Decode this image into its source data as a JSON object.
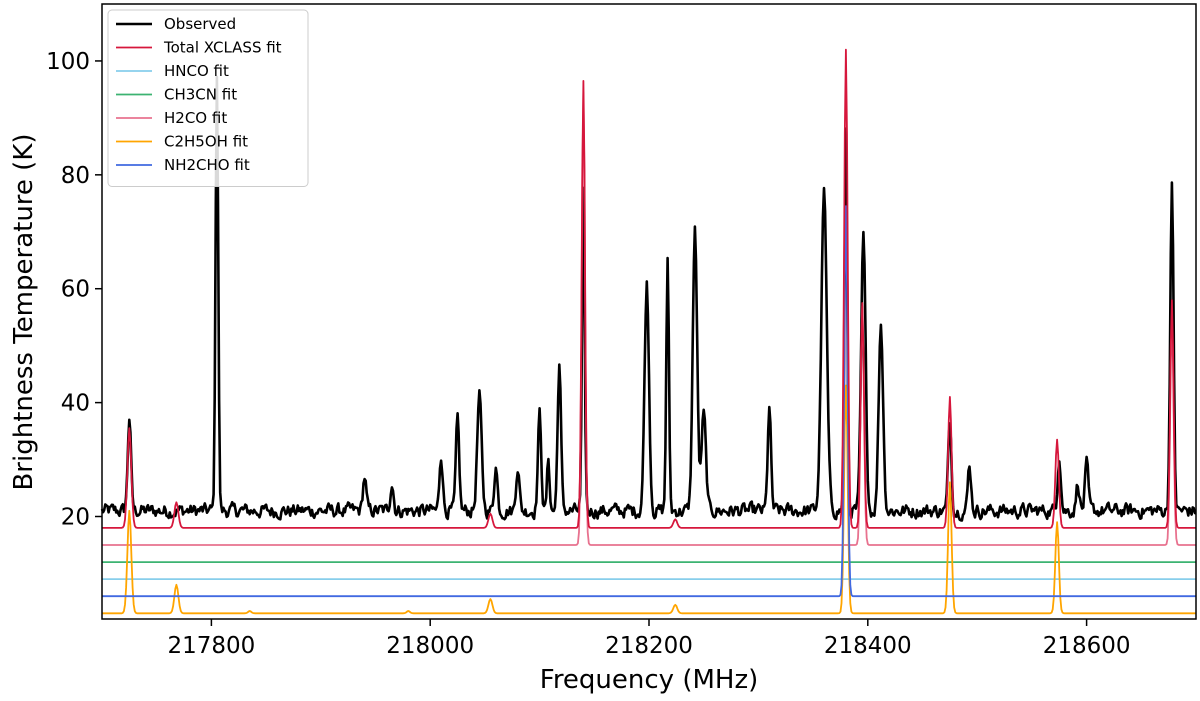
{
  "chart_data": {
    "type": "line",
    "xlabel": "Frequency (MHz)",
    "ylabel": "Brightness Temperature (K)",
    "xlim": [
      217700,
      218700
    ],
    "ylim": [
      2,
      110
    ],
    "xticks": [
      217800,
      218000,
      218200,
      218400,
      218600
    ],
    "yticks": [
      20,
      40,
      60,
      80,
      100
    ],
    "grid": false,
    "legend_position": "top-left",
    "line_width_note": "Observed spectrum drawn thicker than model fits",
    "series": [
      {
        "name": "Observed",
        "color": "#000000",
        "baseline": 21,
        "noise": 1.3,
        "lines": [
          [
            217725,
            16.5,
            1.5
          ],
          [
            217805,
            77,
            1.2
          ],
          [
            217940,
            6,
            1.5
          ],
          [
            217965,
            5,
            1.5
          ],
          [
            218010,
            10,
            1.5
          ],
          [
            218025,
            16,
            1.5
          ],
          [
            218045,
            20,
            2.0
          ],
          [
            218060,
            8,
            1.5
          ],
          [
            218080,
            8,
            1.5
          ],
          [
            218100,
            17,
            1.5
          ],
          [
            218108,
            9,
            1.2
          ],
          [
            218118,
            26,
            1.5
          ],
          [
            218140,
            55,
            1.2
          ],
          [
            218198,
            40,
            2.0
          ],
          [
            218217,
            44,
            1.2
          ],
          [
            218242,
            50,
            2.0
          ],
          [
            218250,
            17,
            2.0
          ],
          [
            218310,
            18,
            1.5
          ],
          [
            218360,
            56,
            2.5
          ],
          [
            218380,
            66,
            1.2
          ],
          [
            218396,
            48,
            2.0
          ],
          [
            218412,
            33,
            2.0
          ],
          [
            218475,
            16,
            1.5
          ],
          [
            218493,
            8,
            1.5
          ],
          [
            218575,
            10,
            1.5
          ],
          [
            218592,
            5,
            1.5
          ],
          [
            218600,
            8,
            1.5
          ],
          [
            218678,
            57,
            1.5
          ]
        ],
        "min_cut": 18
      },
      {
        "name": "Total XCLASS fit",
        "color": "#d6173c",
        "baseline": 18,
        "lines": [
          [
            217725,
            17.5,
            1.8
          ],
          [
            217768,
            4.5,
            1.8
          ],
          [
            218055,
            2.5,
            1.8
          ],
          [
            218140,
            78.5,
            1.5
          ],
          [
            218224,
            1.5,
            1.8
          ],
          [
            218380,
            84,
            1.6
          ],
          [
            218395,
            39.5,
            1.5
          ],
          [
            218475,
            23,
            1.6
          ],
          [
            218573,
            15.5,
            1.6
          ],
          [
            218678,
            40,
            1.5
          ]
        ]
      },
      {
        "name": "HNCO fit",
        "color": "#87ceeb",
        "baseline": 9,
        "lines": []
      },
      {
        "name": "CH3CN fit",
        "color": "#3cb371",
        "baseline": 12,
        "lines": []
      },
      {
        "name": "H2CO fit",
        "color": "#e8728f",
        "baseline": 15,
        "lines": [
          [
            218140,
            79.5,
            1.5
          ],
          [
            218395,
            42,
            1.5
          ],
          [
            218678,
            40,
            1.5
          ]
        ]
      },
      {
        "name": "C2H5OH fit",
        "color": "#ffa500",
        "baseline": 3,
        "lines": [
          [
            217725,
            18,
            1.8
          ],
          [
            217768,
            5,
            1.8
          ],
          [
            217835,
            0.4,
            1.5
          ],
          [
            217980,
            0.4,
            1.5
          ],
          [
            218055,
            2.5,
            1.8
          ],
          [
            218224,
            1.5,
            1.8
          ],
          [
            218380,
            40,
            1.6
          ],
          [
            218475,
            23,
            1.6
          ],
          [
            218573,
            16,
            1.6
          ]
        ]
      },
      {
        "name": "NH2CHO fit",
        "color": "#4169e1",
        "baseline": 6,
        "lines": [
          [
            218380,
            68.5,
            1.5
          ]
        ]
      }
    ]
  }
}
